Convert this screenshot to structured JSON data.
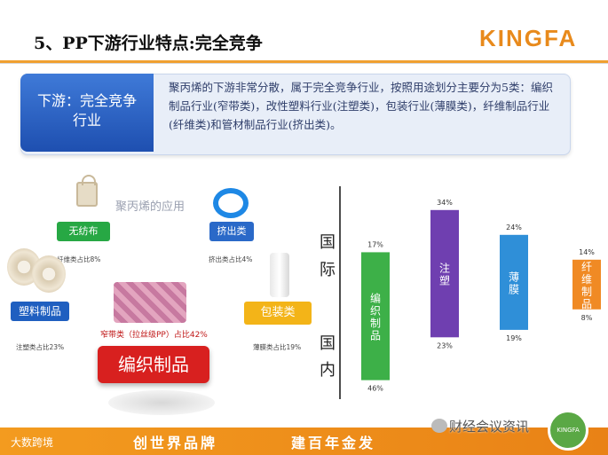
{
  "slide": {
    "title": "5、PP下游行业特点:完全竞争",
    "logo": "KINGFA"
  },
  "summary": {
    "label": "下游：完全竞争行业",
    "text": "聚丙烯的下游非常分散，属于完全竞争行业，按照用途划分主要分为5类：编织制品行业(窄带类)，改性塑料行业(注塑类)，包装行业(薄膜类)，纤维制品行业(纤维类)和管材制品行业(挤出类)。"
  },
  "applications": {
    "title": "聚丙烯的应用",
    "nonwoven": {
      "label": "无纺布",
      "share": "纤维类占比8%"
    },
    "extrude": {
      "label": "挤出类",
      "share": "挤出类占比4%"
    },
    "plastic": {
      "label": "塑料制品",
      "share": "注塑类占比23%"
    },
    "pack": {
      "label": "包装类",
      "share": "薄膜类占比19%"
    },
    "woven": {
      "label": "编织制品",
      "share": "窄带类（拉丝级PP）占比42%"
    }
  },
  "chart_data": {
    "type": "bar",
    "row_labels": {
      "international": "国际",
      "domestic": "国内"
    },
    "categories": [
      "编织制品",
      "注塑",
      "薄膜",
      "纤维制品"
    ],
    "series": [
      {
        "name": "国际",
        "values": [
          17,
          34,
          24,
          14
        ]
      },
      {
        "name": "国内",
        "values": [
          46,
          23,
          19,
          8
        ]
      }
    ],
    "value_labels": {
      "international": [
        "17%",
        "34%",
        "24%",
        "14%"
      ],
      "domestic": [
        "46%",
        "23%",
        "19%",
        "8%"
      ]
    },
    "colors": [
      "#3db048",
      "#6f3fb0",
      "#2f8fd8",
      "#f08a24"
    ]
  },
  "footer": {
    "brand": "大数跨境",
    "slogan1": "创世界品牌",
    "slogan2": "建百年金发",
    "wechat": "财经会议资讯",
    "seal": "KINGFA"
  }
}
